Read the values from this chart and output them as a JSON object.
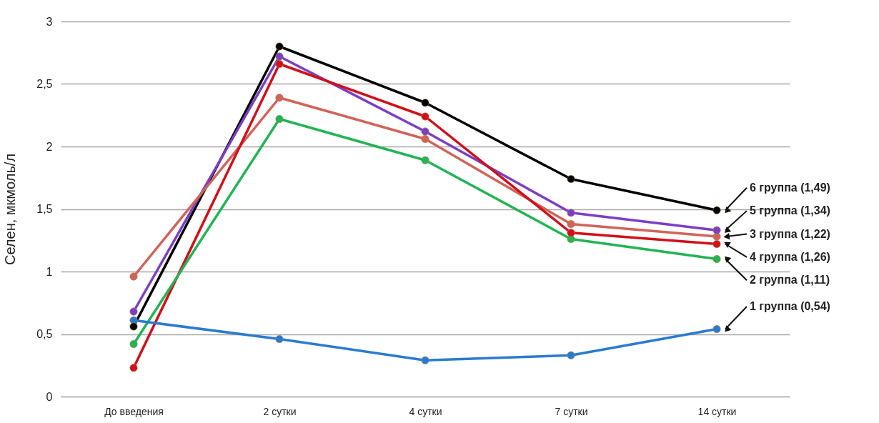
{
  "chart_data": {
    "type": "line",
    "ylabel": "Селен, мкмоль/л",
    "categories": [
      "До введения",
      "2 сутки",
      "4 сутки",
      "7 сутки",
      "14 сутки"
    ],
    "series": [
      {
        "name": "6 группа (1,49)",
        "color": "#000000",
        "values": [
          0.56,
          2.8,
          2.35,
          1.74,
          1.49
        ]
      },
      {
        "name": "5 группа (1,34)",
        "color": "#7b3fc4",
        "values": [
          0.68,
          2.72,
          2.12,
          1.47,
          1.33
        ]
      },
      {
        "name": "3 группа (1,22)",
        "color": "#d0645a",
        "values": [
          0.96,
          2.39,
          2.06,
          1.38,
          1.28
        ]
      },
      {
        "name": "4 группа (1,26)",
        "color": "#d0101a",
        "values": [
          0.23,
          2.66,
          2.24,
          1.31,
          1.22
        ]
      },
      {
        "name": "2 группа (1,11)",
        "color": "#22b455",
        "values": [
          0.42,
          2.22,
          1.89,
          1.26,
          1.1
        ]
      },
      {
        "name": "1 группа (0,54)",
        "color": "#2a7bd0",
        "values": [
          0.61,
          0.46,
          0.29,
          0.33,
          0.54
        ]
      }
    ],
    "ylim": [
      0,
      3
    ],
    "yticks": [
      0,
      {
        "value": 0.5,
        "label": "0,5"
      },
      1,
      {
        "value": 1.5,
        "label": "1,5"
      },
      2,
      {
        "value": 2.5,
        "label": "2,5"
      },
      3
    ],
    "grid": "y",
    "marker": "circle",
    "line_style": "solid"
  }
}
